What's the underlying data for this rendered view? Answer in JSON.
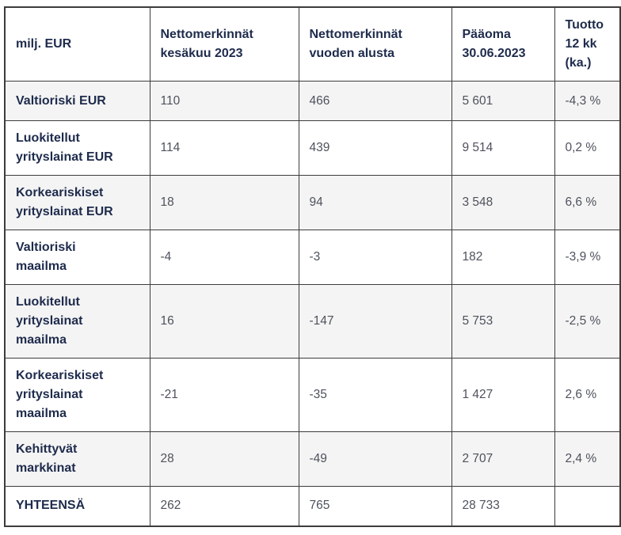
{
  "table": {
    "unit_header": "milj. EUR",
    "columns": [
      "Nettomerkinnät\nkesäkuu 2023",
      "Nettomerkinnät\nvuoden alusta",
      "Pääoma\n30.06.2023",
      "Tuotto\n12 kk\n(ka.)"
    ],
    "rows": [
      {
        "label": "Valtioriski EUR",
        "values": [
          "110",
          "466",
          "5 601",
          "-4,3 %"
        ]
      },
      {
        "label": "Luokitellut\nyrityslainat EUR",
        "values": [
          "114",
          "439",
          "9 514",
          "0,2 %"
        ]
      },
      {
        "label": "Korkeariskiset\nyrityslainat EUR",
        "values": [
          "18",
          "94",
          "3 548",
          "6,6 %"
        ]
      },
      {
        "label": "Valtioriski\nmaailma",
        "values": [
          "-4",
          "-3",
          "182",
          "-3,9 %"
        ]
      },
      {
        "label": "Luokitellut\nyrityslainat\nmaailma",
        "values": [
          "16",
          "-147",
          "5 753",
          "-2,5 %"
        ]
      },
      {
        "label": "Korkeariskiset\nyrityslainat\nmaailma",
        "values": [
          "-21",
          "-35",
          "1 427",
          "2,6 %"
        ]
      },
      {
        "label": "Kehittyvät\nmarkkinat",
        "values": [
          "28",
          "-49",
          "2 707",
          "2,4 %"
        ]
      },
      {
        "label": "YHTEENSÄ",
        "values": [
          "262",
          "765",
          "28 733",
          ""
        ]
      }
    ]
  },
  "colors": {
    "heading_text": "#1e2b4c",
    "data_text": "#4e525c",
    "border": "#3c3c3c",
    "alt_row_background": "#f4f4f4",
    "background": "#ffffff"
  }
}
